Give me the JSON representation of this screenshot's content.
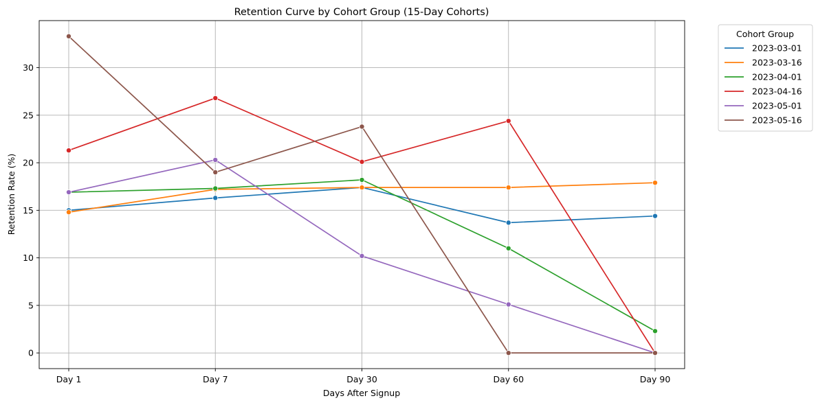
{
  "chart_data": {
    "type": "line",
    "title": "Retention Curve by Cohort Group (15-Day Cohorts)",
    "xlabel": "Days After Signup",
    "ylabel": "Retention Rate (%)",
    "categories": [
      "Day 1",
      "Day 7",
      "Day 30",
      "Day 60",
      "Day 90"
    ],
    "ylim": [
      -1.65,
      34.95
    ],
    "yticks": [
      0,
      5,
      10,
      15,
      20,
      25,
      30
    ],
    "grid": true,
    "legend": {
      "title": "Cohort Group",
      "placement": "outside-top-right"
    },
    "series": [
      {
        "name": "2023-03-01",
        "color": "#1f77b4",
        "values": [
          15.0,
          16.3,
          17.4,
          13.7,
          14.4
        ]
      },
      {
        "name": "2023-03-16",
        "color": "#ff7f0e",
        "values": [
          14.8,
          17.2,
          17.4,
          17.4,
          17.9
        ]
      },
      {
        "name": "2023-04-01",
        "color": "#2ca02c",
        "values": [
          16.9,
          17.3,
          18.2,
          11.0,
          2.3
        ]
      },
      {
        "name": "2023-04-16",
        "color": "#d62728",
        "values": [
          21.3,
          26.8,
          20.1,
          24.4,
          0.0
        ]
      },
      {
        "name": "2023-05-01",
        "color": "#9467bd",
        "values": [
          16.9,
          20.3,
          10.2,
          5.1,
          0.0
        ]
      },
      {
        "name": "2023-05-16",
        "color": "#8c564b",
        "values": [
          33.3,
          19.0,
          23.8,
          0.0,
          0.0
        ]
      }
    ]
  }
}
